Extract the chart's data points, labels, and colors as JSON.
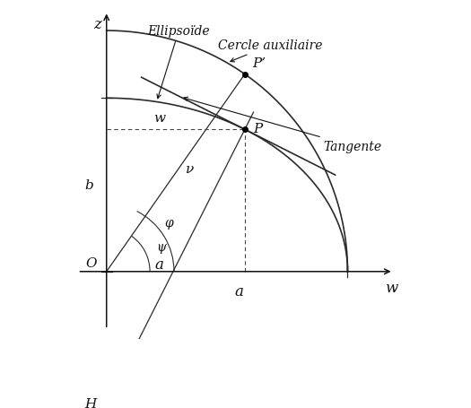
{
  "a": 1.0,
  "b": 0.72,
  "phi_deg": 55,
  "background_color": "#ffffff",
  "curve_color": "#2a2a2a",
  "line_color": "#2a2a2a",
  "dashed_color": "#444444",
  "axis_color": "#111111",
  "text_color": "#111111",
  "label_Ellipsoide": "Ellipsoïde",
  "label_Cercle": "Cercle auxiliaire",
  "label_Tangente": "Tangente",
  "label_z": "z",
  "label_w_axis": "w",
  "label_O": "O",
  "label_H": "H",
  "label_b": "b",
  "label_a_axis": "a",
  "label_a_line": "a",
  "label_w_horiz": "w",
  "label_v": "ν",
  "label_psi": "ψ",
  "label_phi": "φ",
  "label_P": "P",
  "label_Pprime": "P’",
  "figsize": [
    5.25,
    4.56
  ],
  "dpi": 100
}
